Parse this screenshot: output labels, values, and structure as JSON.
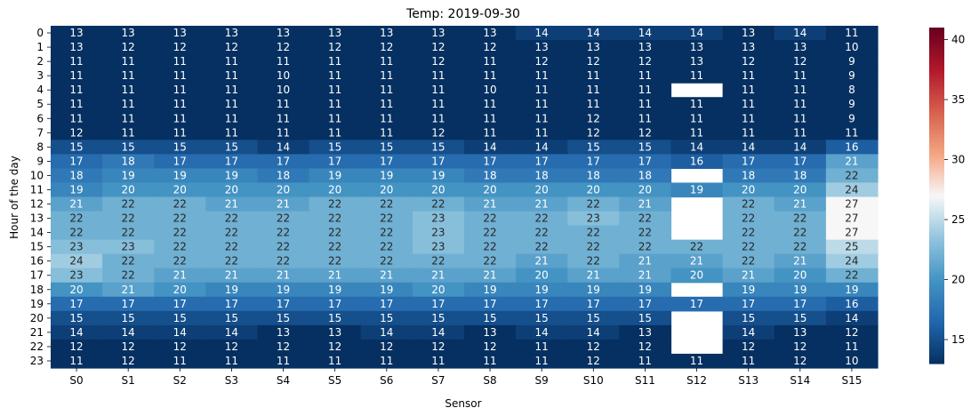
{
  "chart_data": {
    "type": "heatmap",
    "title": "Temp: 2019-09-30",
    "xlabel": "Sensor",
    "ylabel": "Hour of the day",
    "x": [
      "S0",
      "S1",
      "S2",
      "S3",
      "S4",
      "S5",
      "S6",
      "S7",
      "S8",
      "S9",
      "S10",
      "S11",
      "S12",
      "S13",
      "S14",
      "S15"
    ],
    "y": [
      "0",
      "1",
      "2",
      "3",
      "4",
      "5",
      "6",
      "7",
      "8",
      "9",
      "10",
      "11",
      "12",
      "13",
      "14",
      "15",
      "16",
      "17",
      "18",
      "19",
      "20",
      "21",
      "22",
      "23"
    ],
    "values": [
      [
        13,
        13,
        13,
        13,
        13,
        13,
        13,
        13,
        13,
        14,
        14,
        14,
        14,
        13,
        14,
        11
      ],
      [
        13,
        12,
        12,
        12,
        12,
        12,
        12,
        12,
        12,
        13,
        13,
        13,
        13,
        13,
        13,
        10
      ],
      [
        11,
        11,
        11,
        11,
        11,
        11,
        11,
        12,
        11,
        12,
        12,
        12,
        13,
        12,
        12,
        9
      ],
      [
        11,
        11,
        11,
        11,
        10,
        11,
        11,
        11,
        11,
        11,
        11,
        11,
        11,
        11,
        11,
        9
      ],
      [
        11,
        11,
        11,
        11,
        10,
        11,
        11,
        11,
        10,
        11,
        11,
        11,
        null,
        11,
        11,
        8
      ],
      [
        11,
        11,
        11,
        11,
        11,
        11,
        11,
        11,
        11,
        11,
        11,
        11,
        11,
        11,
        11,
        9
      ],
      [
        11,
        11,
        11,
        11,
        11,
        11,
        11,
        11,
        11,
        11,
        12,
        11,
        11,
        11,
        11,
        9
      ],
      [
        12,
        11,
        11,
        11,
        11,
        11,
        11,
        12,
        11,
        11,
        12,
        12,
        11,
        11,
        11,
        11
      ],
      [
        15,
        15,
        15,
        15,
        14,
        15,
        15,
        15,
        14,
        14,
        15,
        15,
        14,
        14,
        14,
        16
      ],
      [
        17,
        18,
        17,
        17,
        17,
        17,
        17,
        17,
        17,
        17,
        17,
        17,
        16,
        17,
        17,
        21
      ],
      [
        18,
        19,
        19,
        19,
        18,
        19,
        19,
        19,
        18,
        18,
        18,
        18,
        null,
        18,
        18,
        22
      ],
      [
        19,
        20,
        20,
        20,
        20,
        20,
        20,
        20,
        20,
        20,
        20,
        20,
        19,
        20,
        20,
        24
      ],
      [
        21,
        22,
        22,
        21,
        21,
        22,
        22,
        22,
        21,
        21,
        22,
        21,
        null,
        22,
        21,
        27
      ],
      [
        22,
        22,
        22,
        22,
        22,
        22,
        22,
        23,
        22,
        22,
        23,
        22,
        null,
        22,
        22,
        27
      ],
      [
        22,
        22,
        22,
        22,
        22,
        22,
        22,
        23,
        22,
        22,
        22,
        22,
        null,
        22,
        22,
        27
      ],
      [
        23,
        23,
        22,
        22,
        22,
        22,
        22,
        23,
        22,
        22,
        22,
        22,
        22,
        22,
        22,
        25
      ],
      [
        24,
        22,
        22,
        22,
        22,
        22,
        22,
        22,
        22,
        21,
        22,
        21,
        21,
        22,
        21,
        24
      ],
      [
        23,
        22,
        21,
        21,
        21,
        21,
        21,
        21,
        21,
        20,
        21,
        21,
        20,
        21,
        20,
        22
      ],
      [
        20,
        21,
        20,
        19,
        19,
        19,
        19,
        20,
        19,
        19,
        19,
        19,
        null,
        19,
        19,
        19
      ],
      [
        17,
        17,
        17,
        17,
        17,
        17,
        17,
        17,
        17,
        17,
        17,
        17,
        17,
        17,
        17,
        16
      ],
      [
        15,
        15,
        15,
        15,
        15,
        15,
        15,
        15,
        15,
        15,
        15,
        15,
        null,
        15,
        15,
        14
      ],
      [
        14,
        14,
        14,
        14,
        13,
        13,
        14,
        14,
        13,
        14,
        14,
        13,
        null,
        14,
        13,
        12
      ],
      [
        12,
        12,
        12,
        12,
        12,
        12,
        12,
        12,
        12,
        11,
        12,
        12,
        null,
        12,
        12,
        11
      ],
      [
        11,
        12,
        11,
        11,
        11,
        11,
        11,
        11,
        11,
        11,
        12,
        11,
        11,
        11,
        12,
        10
      ]
    ],
    "vmin": 13,
    "vmax": 41,
    "colormap": "RdBu_r",
    "colorbar_ticks": [
      15,
      20,
      25,
      30,
      35,
      40
    ]
  }
}
